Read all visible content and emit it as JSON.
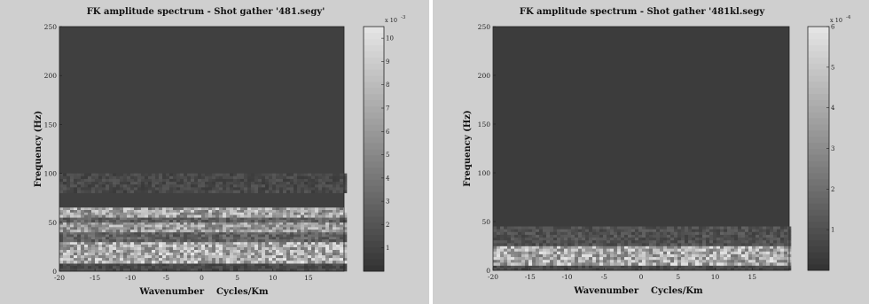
{
  "chart_data": [
    {
      "type": "heatmap",
      "title": "FK amplitude spectrum - Shot gather '481.segy'",
      "xlabel": "Wavenumber    Cycles/Km",
      "ylabel": "Frequency (Hz)",
      "xlim": [
        -20,
        20
      ],
      "ylim": [
        0,
        250
      ],
      "xticks": [
        -20,
        -15,
        -10,
        -5,
        0,
        5,
        10,
        15
      ],
      "yticks": [
        0,
        50,
        100,
        150,
        200,
        250
      ],
      "colorbar": {
        "multiplier": "x 10",
        "exponent": "-3",
        "range": [
          0,
          10.5
        ],
        "ticks": [
          1,
          2,
          3,
          4,
          5,
          6,
          7,
          8,
          9,
          10
        ]
      },
      "bands": [
        {
          "f_min": 0,
          "f_max": 8,
          "level": 0.2
        },
        {
          "f_min": 8,
          "f_max": 30,
          "level": 0.8
        },
        {
          "f_min": 30,
          "f_max": 40,
          "level": 0.35
        },
        {
          "f_min": 40,
          "f_max": 50,
          "level": 0.7
        },
        {
          "f_min": 50,
          "f_max": 55,
          "level": 0.35
        },
        {
          "f_min": 55,
          "f_max": 65,
          "level": 0.75
        },
        {
          "f_min": 80,
          "f_max": 100,
          "level": 0.2
        }
      ],
      "background_level": 0.12
    },
    {
      "type": "heatmap",
      "title": "FK amplitude spectrum - Shot gather '481kl.segy",
      "xlabel": "Wavenumber    Cycles/Km",
      "ylabel": "Frequency (Hz)",
      "xlim": [
        -20,
        20
      ],
      "ylim": [
        0,
        250
      ],
      "xticks": [
        -20,
        -15,
        -10,
        -5,
        0,
        5,
        10,
        15
      ],
      "yticks": [
        0,
        50,
        100,
        150,
        200,
        250
      ],
      "colorbar": {
        "multiplier": "x 10",
        "exponent": "-4",
        "range": [
          0,
          6
        ],
        "ticks": [
          1,
          2,
          3,
          4,
          5,
          6
        ]
      },
      "bands": [
        {
          "f_min": 0,
          "f_max": 5,
          "level": 0.2
        },
        {
          "f_min": 5,
          "f_max": 25,
          "level": 0.8
        },
        {
          "f_min": 25,
          "f_max": 45,
          "level": 0.25
        }
      ],
      "background_level": 0.1
    }
  ]
}
